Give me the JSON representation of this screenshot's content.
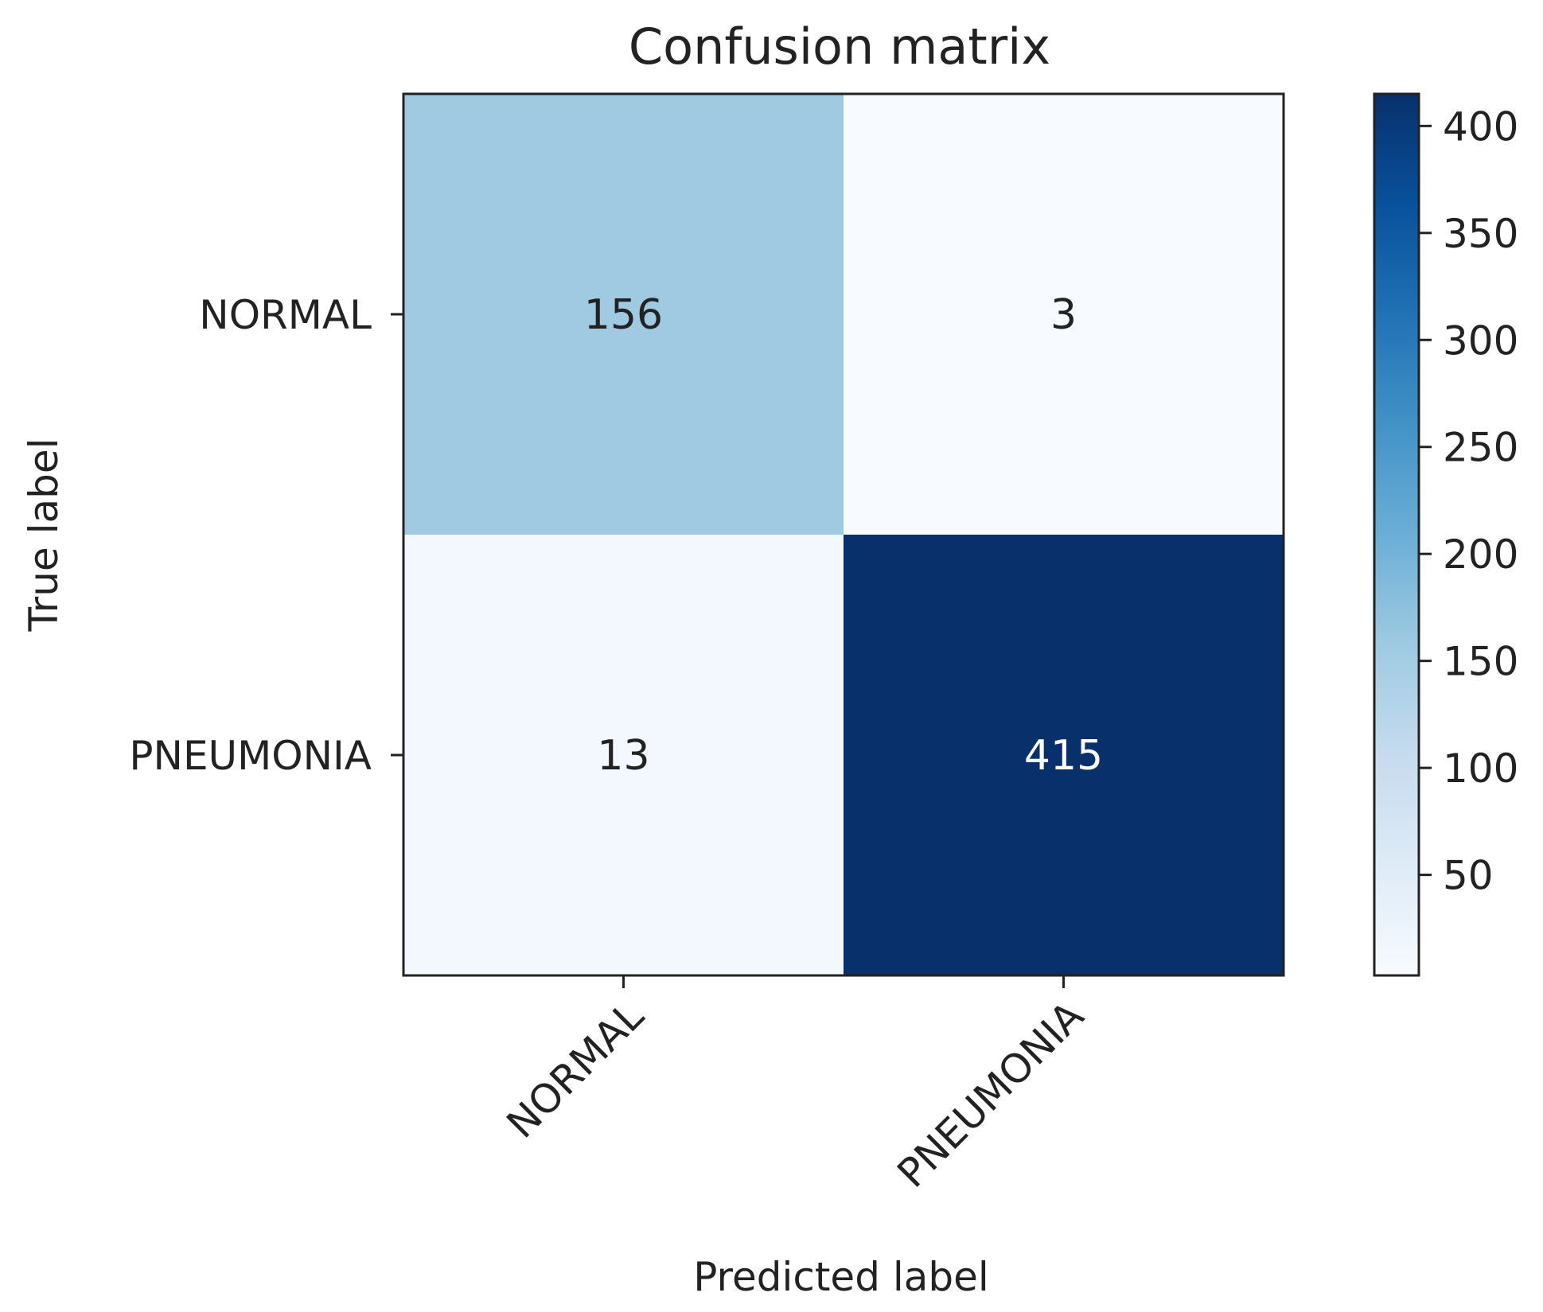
{
  "chart_data": {
    "type": "heatmap",
    "title": "Confusion matrix",
    "xlabel": "Predicted label",
    "ylabel": "True label",
    "x_categories": [
      "NORMAL",
      "PNEUMONIA"
    ],
    "y_categories": [
      "NORMAL",
      "PNEUMONIA"
    ],
    "values": [
      [
        156,
        3
      ],
      [
        13,
        415
      ]
    ],
    "colormap": "Blues",
    "colorbar": {
      "min": 3,
      "max": 415,
      "ticks": [
        50,
        100,
        150,
        200,
        250,
        300,
        350,
        400
      ]
    },
    "x_tick_rotation_deg": 45
  }
}
